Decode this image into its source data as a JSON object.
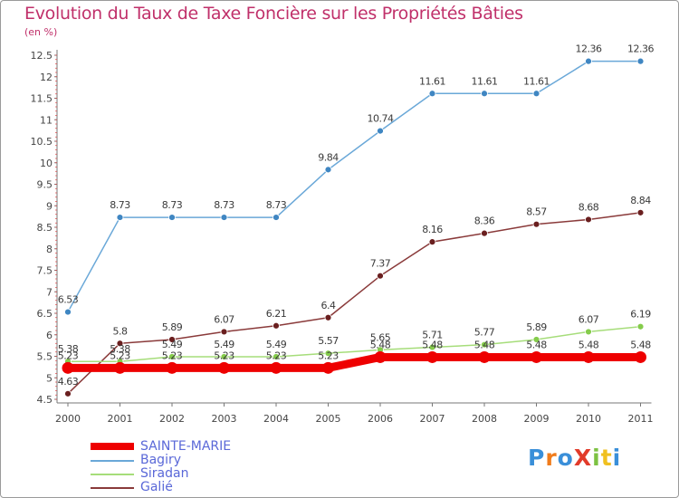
{
  "title": "Evolution du Taux de Taxe Foncière sur les Propriétés Bâties",
  "subtitle": "(en %)",
  "logo": {
    "text": "ProXiti",
    "colors": [
      "#3a8fd9",
      "#f07c1c",
      "#3a8fd9",
      "#e23b2a",
      "#7cc242",
      "#f0c020",
      "#3a8fd9"
    ]
  },
  "chart_data": {
    "type": "line",
    "categories": [
      "2000",
      "2001",
      "2002",
      "2003",
      "2004",
      "2005",
      "2006",
      "2007",
      "2008",
      "2009",
      "2010",
      "2011"
    ],
    "ylim": [
      4.5,
      12.5
    ],
    "yticks": [
      "4.5",
      "5",
      "5.5",
      "6",
      "6.5",
      "7",
      "7.5",
      "8",
      "8.5",
      "9",
      "9.5",
      "10",
      "10.5",
      "11",
      "11.5",
      "12",
      "12.5"
    ],
    "grid": false,
    "legend_position": "bottom-left",
    "series": [
      {
        "name": "SAINTE-MARIE",
        "color": "#ee0000",
        "thick": true,
        "values": [
          5.23,
          5.23,
          5.23,
          5.23,
          5.23,
          5.23,
          5.48,
          5.48,
          5.48,
          5.48,
          5.48,
          5.48
        ],
        "labels": [
          "5.23",
          "5.23",
          "5.23",
          "5.23",
          "5.23",
          "5.23",
          "5.48",
          "5.48",
          "5.48",
          "5.48",
          "5.48",
          "5.48"
        ]
      },
      {
        "name": "Bagiry",
        "color": "#6aa8d8",
        "marker": "#3f86c2",
        "values": [
          6.53,
          8.73,
          8.73,
          8.73,
          8.73,
          9.84,
          10.74,
          11.61,
          11.61,
          11.61,
          12.36,
          12.36
        ],
        "labels": [
          "6.53",
          "8.73",
          "8.73",
          "8.73",
          "8.73",
          "9.84",
          "10.74",
          "11.61",
          "11.61",
          "11.61",
          "12.36",
          "12.36"
        ]
      },
      {
        "name": "Siradan",
        "color": "#a6dd7a",
        "marker": "#85cc4b",
        "values": [
          5.38,
          5.38,
          5.49,
          5.49,
          5.49,
          5.57,
          5.65,
          5.71,
          5.77,
          5.89,
          6.07,
          6.19
        ],
        "labels": [
          "5.38",
          "5.38",
          "5.49",
          "5.49",
          "5.49",
          "5.57",
          "5.65",
          "5.71",
          "5.77",
          "5.89",
          "6.07",
          "6.19"
        ]
      },
      {
        "name": "Galié",
        "color": "#8a3a3a",
        "marker": "#6a1f1f",
        "values": [
          4.63,
          5.8,
          5.89,
          6.07,
          6.21,
          6.4,
          7.37,
          8.16,
          8.36,
          8.57,
          8.68,
          8.84
        ],
        "labels": [
          "4.63",
          "5.8",
          "5.89",
          "6.07",
          "6.21",
          "6.4",
          "7.37",
          "8.16",
          "8.36",
          "8.57",
          "8.68",
          "8.84"
        ]
      }
    ]
  }
}
